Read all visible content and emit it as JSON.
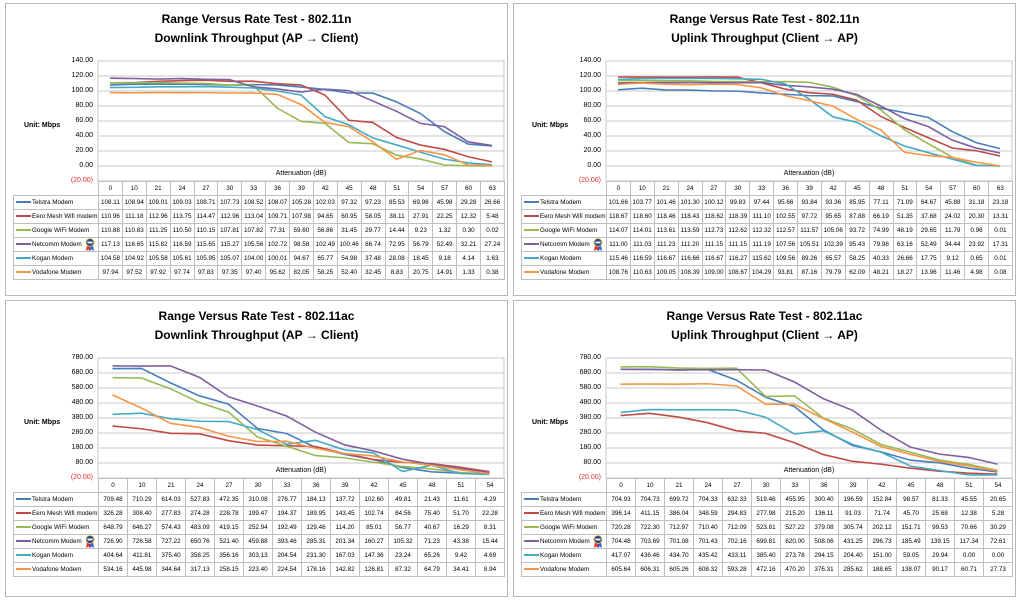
{
  "series_colors": {
    "Telstra Modem": "#4a7ebb",
    "Eero Mesh Wifi modem": "#be4b48",
    "Google WiFi Modem": "#98b954",
    "Netcomm Modem": "#7d60a0",
    "Kogan Modem": "#46aac5",
    "Vodafone Modem": "#f79646"
  },
  "badge_icon": "award-ribbon-icon",
  "badge_series": "Netcomm Modem",
  "chart_data": [
    {
      "type": "line",
      "title": "Range Versus Rate Test - 802.11n",
      "subtitle": "Downlink  Throughput (AP → Client)",
      "xlabel": "Attenuation (dB)",
      "ylabel": "Unit: Mbps",
      "ylim": [
        -20,
        140
      ],
      "yticks": [
        "140.00",
        "120.00",
        "100.00",
        "80.00",
        "60.00",
        "40.00",
        "20.00",
        "0.00",
        "(20.00)"
      ],
      "grid": true,
      "legend": "table-bottom",
      "categories": [
        "0",
        "10",
        "21",
        "24",
        "27",
        "30",
        "33",
        "36",
        "39",
        "42",
        "45",
        "48",
        "51",
        "54",
        "57",
        "60",
        "63"
      ],
      "series": [
        {
          "name": "Telstra Modem",
          "values": [
            108.11,
            108.94,
            109.01,
            109.03,
            108.71,
            107.73,
            108.52,
            108.07,
            105.28,
            102.03,
            97.32,
            97.23,
            85.53,
            69.98,
            45.98,
            29.28,
            26.66
          ]
        },
        {
          "name": "Eero Mesh Wifi modem",
          "values": [
            110.96,
            111.18,
            112.96,
            113.75,
            114.47,
            112.96,
            113.04,
            109.71,
            107.98,
            94.65,
            60.95,
            58.05,
            38.11,
            27.91,
            22.25,
            12.32,
            5.48
          ]
        },
        {
          "name": "Google WiFi Modem",
          "values": [
            110.88,
            110.83,
            111.25,
            110.5,
            110.15,
            107.81,
            107.82,
            77.31,
            59.6,
            56.86,
            31.45,
            29.77,
            14.44,
            9.23,
            1.32,
            0.3,
            0.02
          ]
        },
        {
          "name": "Netcomm Modem",
          "values": [
            117.13,
            116.65,
            115.82,
            116.59,
            115.65,
            115.27,
            105.56,
            102.72,
            98.58,
            102.49,
            100.46,
            86.74,
            72.95,
            56.79,
            52.49,
            32.21,
            27.24
          ]
        },
        {
          "name": "Kogan Modem",
          "values": [
            104.58,
            104.92,
            105.58,
            105.61,
            105.95,
            105.07,
            104.0,
            100.01,
            94.67,
            65.77,
            54.98,
            37.48,
            28.08,
            18.45,
            9.18,
            4.14,
            1.63
          ]
        },
        {
          "name": "Vodafone Modem",
          "values": [
            97.94,
            97.52,
            97.92,
            97.74,
            97.83,
            97.35,
            97.4,
            95.62,
            82.05,
            58.25,
            52.4,
            32.45,
            8.83,
            20.75,
            14.91,
            1.33,
            0.38
          ]
        }
      ]
    },
    {
      "type": "line",
      "title": "Range Versus Rate Test - 802.11n",
      "subtitle": "Uplink Throughput (Client → AP)",
      "xlabel": "Attenuation (dB)",
      "ylabel": "Unit: Mbps",
      "ylim": [
        -20,
        140
      ],
      "yticks": [
        "140.00",
        "120.00",
        "100.00",
        "80.00",
        "60.00",
        "40.00",
        "20.00",
        "0.00",
        "(20.00)"
      ],
      "grid": true,
      "legend": "table-bottom",
      "categories": [
        "0",
        "10",
        "21",
        "24",
        "27",
        "30",
        "33",
        "36",
        "39",
        "42",
        "45",
        "48",
        "51",
        "54",
        "57",
        "60",
        "63"
      ],
      "series": [
        {
          "name": "Telstra Modem",
          "values": [
            101.66,
            103.77,
            101.46,
            101.3,
            100.12,
            99.83,
            97.44,
            95.66,
            93.84,
            93.36,
            85.95,
            77.11,
            71.09,
            64.67,
            45.88,
            31.18,
            23.18
          ]
        },
        {
          "name": "Eero Mesh Wifi modem",
          "values": [
            118.67,
            118.6,
            118.46,
            118.43,
            118.62,
            118.39,
            111.1,
            102.55,
            97.72,
            95.65,
            87.88,
            66.19,
            51.35,
            37.68,
            24.02,
            20.3,
            13.31
          ]
        },
        {
          "name": "Google WiFi Modem",
          "values": [
            114.07,
            114.01,
            113.61,
            113.59,
            112.73,
            112.62,
            112.32,
            112.57,
            111.57,
            105.06,
            93.72,
            74.99,
            48.19,
            29.65,
            11.79,
            0.96,
            0.01
          ]
        },
        {
          "name": "Netcomm Modem",
          "values": [
            111.0,
            111.03,
            111.23,
            111.2,
            111.15,
            111.15,
            111.19,
            107.56,
            105.51,
            102.39,
            95.43,
            79.98,
            63.16,
            52.49,
            34.44,
            23.92,
            17.31
          ]
        },
        {
          "name": "Kogan Modem",
          "values": [
            115.46,
            116.59,
            116.67,
            116.66,
            116.67,
            116.27,
            115.62,
            109.56,
            89.26,
            65.57,
            58.25,
            40.33,
            26.66,
            17.75,
            9.12,
            0.65,
            0.01
          ]
        },
        {
          "name": "Vodafone Modem",
          "values": [
            108.76,
            110.63,
            109.05,
            108.39,
            109.0,
            108.67,
            104.29,
            93.81,
            87.16,
            79.79,
            62.09,
            48.21,
            18.27,
            13.96,
            11.46,
            4.98,
            0.08
          ]
        }
      ]
    },
    {
      "type": "line",
      "title": "Range Versus Rate Test - 802.11ac",
      "subtitle": "Downlink  Throughput (AP → Client)",
      "xlabel": "Attenuation (dB)",
      "ylabel": "Unit: Mbps",
      "ylim": [
        -20,
        780
      ],
      "yticks": [
        "780.00",
        "680.00",
        "580.00",
        "480.00",
        "380.00",
        "280.00",
        "180.00",
        "80.00",
        "(20.00)"
      ],
      "grid": true,
      "legend": "table-bottom",
      "categories": [
        "0",
        "10",
        "21",
        "24",
        "27",
        "30",
        "33",
        "36",
        "39",
        "42",
        "45",
        "48",
        "51",
        "54"
      ],
      "series": [
        {
          "name": "Telstra Modem",
          "values": [
            709.48,
            710.29,
            614.03,
            527.83,
            472.35,
            310.08,
            276.77,
            184.13,
            137.72,
            102.6,
            49.81,
            21.43,
            11.61,
            4.29
          ]
        },
        {
          "name": "Eero Mesh Wifi modem",
          "values": [
            326.28,
            308.4,
            277.83,
            274.28,
            228.78,
            199.47,
            194.37,
            189.95,
            143.45,
            102.74,
            84.56,
            75.4,
            51.7,
            22.28
          ]
        },
        {
          "name": "Google WiFi Modem",
          "values": [
            648.79,
            646.27,
            574.43,
            483.09,
            419.15,
            252.94,
            192.49,
            129.46,
            114.2,
            85.01,
            56.77,
            40.67,
            16.29,
            8.31
          ]
        },
        {
          "name": "Netcomm Modem",
          "values": [
            726.9,
            726.58,
            727.22,
            650.76,
            521.4,
            459.88,
            393.46,
            285.31,
            201.34,
            160.27,
            105.32,
            71.23,
            43.38,
            15.44
          ]
        },
        {
          "name": "Kogan Modem",
          "values": [
            404.64,
            411.81,
            375.4,
            358.25,
            356.16,
            303.13,
            204.54,
            231.3,
            167.03,
            147.36,
            23.24,
            65.26,
            9.42,
            4.69
          ]
        },
        {
          "name": "Vodafone Modem",
          "values": [
            534.16,
            445.98,
            344.64,
            317.13,
            258.15,
            223.4,
            224.54,
            178.16,
            142.82,
            126.81,
            87.32,
            64.79,
            34.41,
            8.94
          ]
        }
      ]
    },
    {
      "type": "line",
      "title": "Range Versus Rate Test - 802.11ac",
      "subtitle": "Uplink Throughput (Client → AP)",
      "xlabel": "Attenuation (dB)",
      "ylabel": "Unit: Mbps",
      "ylim": [
        -20,
        780
      ],
      "yticks": [
        "780.00",
        "680.00",
        "580.00",
        "480.00",
        "380.00",
        "280.00",
        "180.00",
        "80.00",
        "(20.00)"
      ],
      "grid": true,
      "legend": "table-bottom",
      "categories": [
        "0",
        "10",
        "21",
        "24",
        "27",
        "30",
        "33",
        "36",
        "39",
        "42",
        "45",
        "48",
        "51",
        "54"
      ],
      "series": [
        {
          "name": "Telstra Modem",
          "values": [
            704.93,
            704.73,
            699.72,
            704.33,
            632.33,
            519.46,
            455.95,
            300.4,
            196.59,
            152.84,
            98.57,
            81.33,
            45.55,
            20.65
          ]
        },
        {
          "name": "Eero Mesh Wifi modem",
          "values": [
            396.14,
            411.15,
            386.04,
            348.59,
            294.83,
            277.98,
            215.2,
            136.11,
            91.03,
            71.74,
            45.7,
            25.68,
            12.38,
            5.28
          ]
        },
        {
          "name": "Google WiFi Modem",
          "values": [
            720.28,
            722.3,
            712.97,
            710.4,
            712.09,
            523.81,
            527.22,
            379.08,
            305.74,
            202.12,
            151.71,
            99.53,
            70.66,
            30.29
          ]
        },
        {
          "name": "Netcomm Modem",
          "values": [
            704.48,
            703.69,
            701.08,
            701.43,
            702.16,
            699.81,
            620.0,
            508.06,
            431.25,
            296.73,
            185.49,
            139.15,
            117.34,
            72.61
          ]
        },
        {
          "name": "Kogan Modem",
          "values": [
            417.07,
            436.46,
            434.7,
            435.42,
            433.11,
            385.4,
            273.78,
            294.15,
            204.4,
            151.0,
            59.05,
            29.94,
            0.0,
            0.0
          ]
        },
        {
          "name": "Vodafone Modem",
          "values": [
            605.64,
            606.31,
            605.26,
            608.32,
            593.28,
            472.16,
            470.2,
            376.31,
            285.62,
            188.65,
            138.07,
            90.17,
            60.71,
            27.73
          ]
        }
      ]
    }
  ]
}
